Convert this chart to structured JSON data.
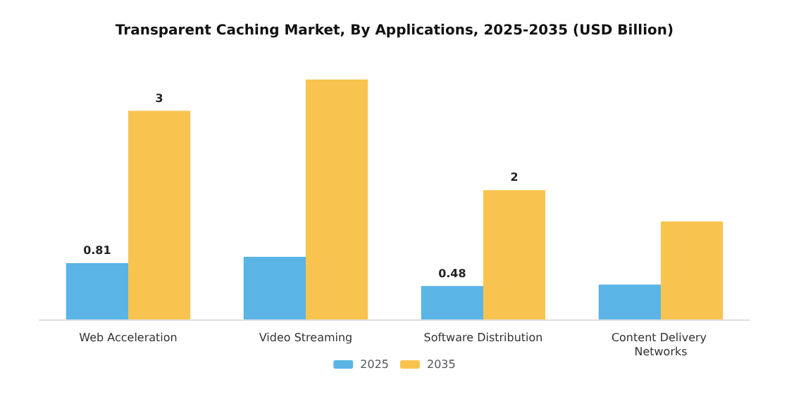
{
  "chart_data": {
    "type": "bar",
    "title": "Transparent Caching Market, By Applications, 2025-2035 (USD Billion)",
    "categories": [
      "Web Acceleration",
      "Video Streaming",
      "Software Distribution",
      "Content Delivery Networks"
    ],
    "series": [
      {
        "name": "2025",
        "color": "#5ab4e5",
        "values": [
          0.81,
          0.9,
          0.48,
          0.5
        ],
        "value_labels": [
          "0.81",
          null,
          "0.48",
          null
        ]
      },
      {
        "name": "2035",
        "color": "#f8c44f",
        "values": [
          3,
          3.45,
          1.86,
          1.41
        ],
        "value_labels": [
          "3",
          null,
          "2",
          null
        ]
      }
    ],
    "legend": "bottom",
    "grid": false
  }
}
